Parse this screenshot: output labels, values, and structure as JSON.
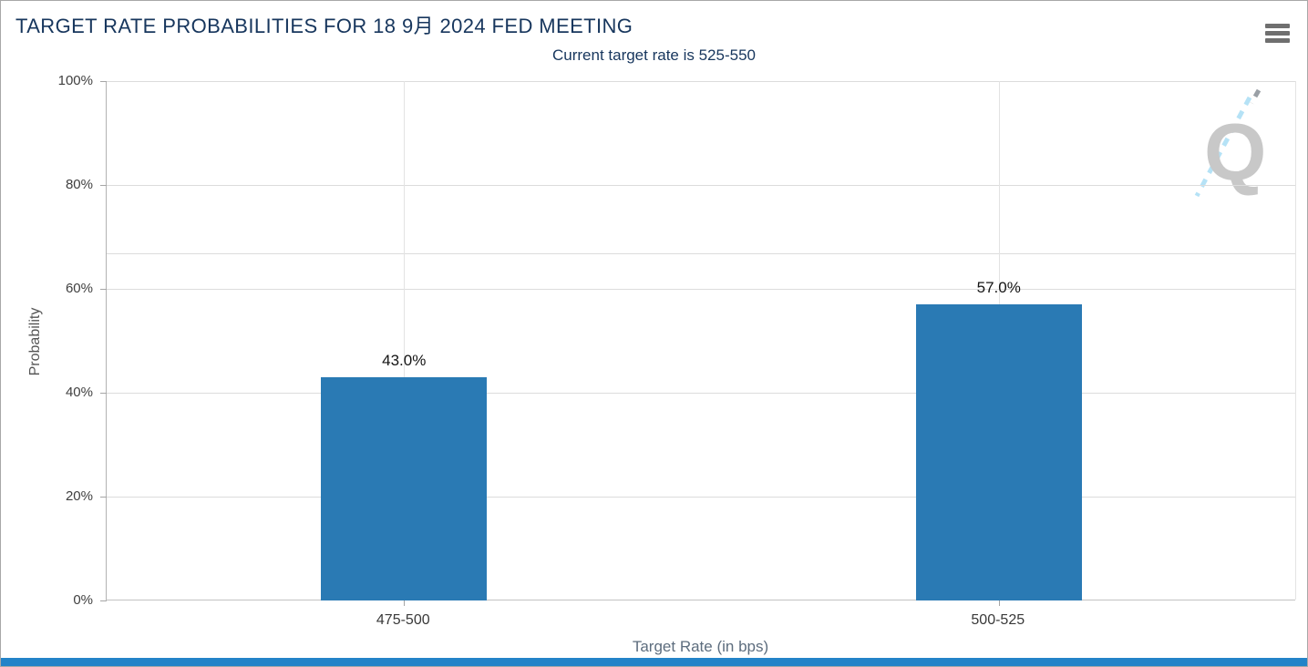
{
  "header": {
    "title": "TARGET RATE PROBABILITIES FOR 18 9月 2024 FED MEETING",
    "subtitle": "Current target rate is 525-550"
  },
  "chart_data": {
    "type": "bar",
    "title": "TARGET RATE PROBABILITIES FOR 18 9月 2024 FED MEETING",
    "subtitle": "Current target rate is 525-550",
    "categories": [
      "475-500",
      "500-525"
    ],
    "values": [
      43.0,
      57.0
    ],
    "value_labels": [
      "43.0%",
      "57.0%"
    ],
    "xlabel": "Target Rate (in bps)",
    "ylabel": "Probability",
    "ylim": [
      0,
      100
    ],
    "yticks": [
      0,
      20,
      40,
      60,
      80,
      100
    ],
    "ytick_labels": [
      "0%",
      "20%",
      "40%",
      "60%",
      "80%",
      "100%"
    ],
    "extra_gridline_percent": 66.8,
    "grid": true,
    "legend": false,
    "bar_color": "#2a7ab4",
    "watermark_letter": "Q"
  },
  "colors": {
    "title_text": "#17365d",
    "bar": "#2a7ab4",
    "gridline": "#dcdcdc",
    "axis": "#b3b3b3",
    "bottom_bar": "#2383c8",
    "watermark_gray": "#c8c8c8",
    "watermark_blue": "#b5e2f6",
    "menu_icon": "#6f6f6f"
  }
}
